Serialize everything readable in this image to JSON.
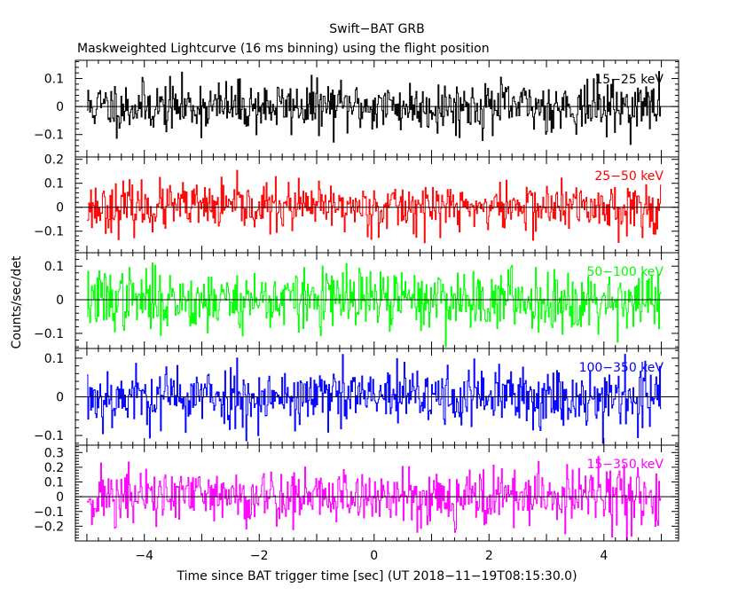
{
  "chart_data": {
    "type": "line",
    "title": "Swift−BAT GRB",
    "subtitle": "Maskweighted Lightcurve (16 ms binning) using the flight position",
    "xlabel": "Time since BAT trigger time [sec] (UT 2018−11−19T08:15:30.0)",
    "ylabel": "Counts/sec/det",
    "xlim": [
      -5.2,
      5.3
    ],
    "x_ticks": [
      -4,
      -2,
      0,
      2,
      4
    ],
    "x_tick_labels": [
      "−4",
      "−2",
      "0",
      "2",
      "4"
    ],
    "data_x_range": [
      -5.0,
      4.984
    ],
    "bin_size_sec": 0.016,
    "panels": [
      {
        "label": "15−25 keV",
        "color": "#000000",
        "ylim": [
          -0.18,
          0.165
        ],
        "y_ticks": [
          -0.1,
          0,
          0.1
        ],
        "y_tick_labels": [
          "−0.1",
          "0",
          "0.1"
        ],
        "noise_sigma": 0.045,
        "seed": 11
      },
      {
        "label": "25−50 keV",
        "color": "#ff0000",
        "ylim": [
          -0.19,
          0.21
        ],
        "y_ticks": [
          -0.1,
          0,
          0.1,
          0.2
        ],
        "y_tick_labels": [
          "−0.1",
          "0",
          "0.1",
          "0.2"
        ],
        "noise_sigma": 0.05,
        "seed": 23
      },
      {
        "label": "50−100 keV",
        "color": "#00ff00",
        "ylim": [
          -0.145,
          0.14
        ],
        "y_ticks": [
          -0.1,
          0,
          0.1
        ],
        "y_tick_labels": [
          "−0.1",
          "0",
          "0.1"
        ],
        "noise_sigma": 0.045,
        "seed": 37
      },
      {
        "label": "100−350 keV",
        "color": "#0000ff",
        "ylim": [
          -0.125,
          0.125
        ],
        "y_ticks": [
          -0.1,
          0,
          0.1
        ],
        "y_tick_labels": [
          "−0.1",
          "0",
          "0.1"
        ],
        "noise_sigma": 0.04,
        "seed": 53
      },
      {
        "label": "15−350 keV",
        "color": "#ff00ff",
        "ylim": [
          -0.3,
          0.35
        ],
        "y_ticks": [
          -0.2,
          -0.1,
          0,
          0.1,
          0.2,
          0.3
        ],
        "y_tick_labels": [
          "−0.2",
          "−0.1",
          "0",
          "0.1",
          "0.2",
          "0.3"
        ],
        "noise_sigma": 0.1,
        "seed": 71
      }
    ]
  }
}
